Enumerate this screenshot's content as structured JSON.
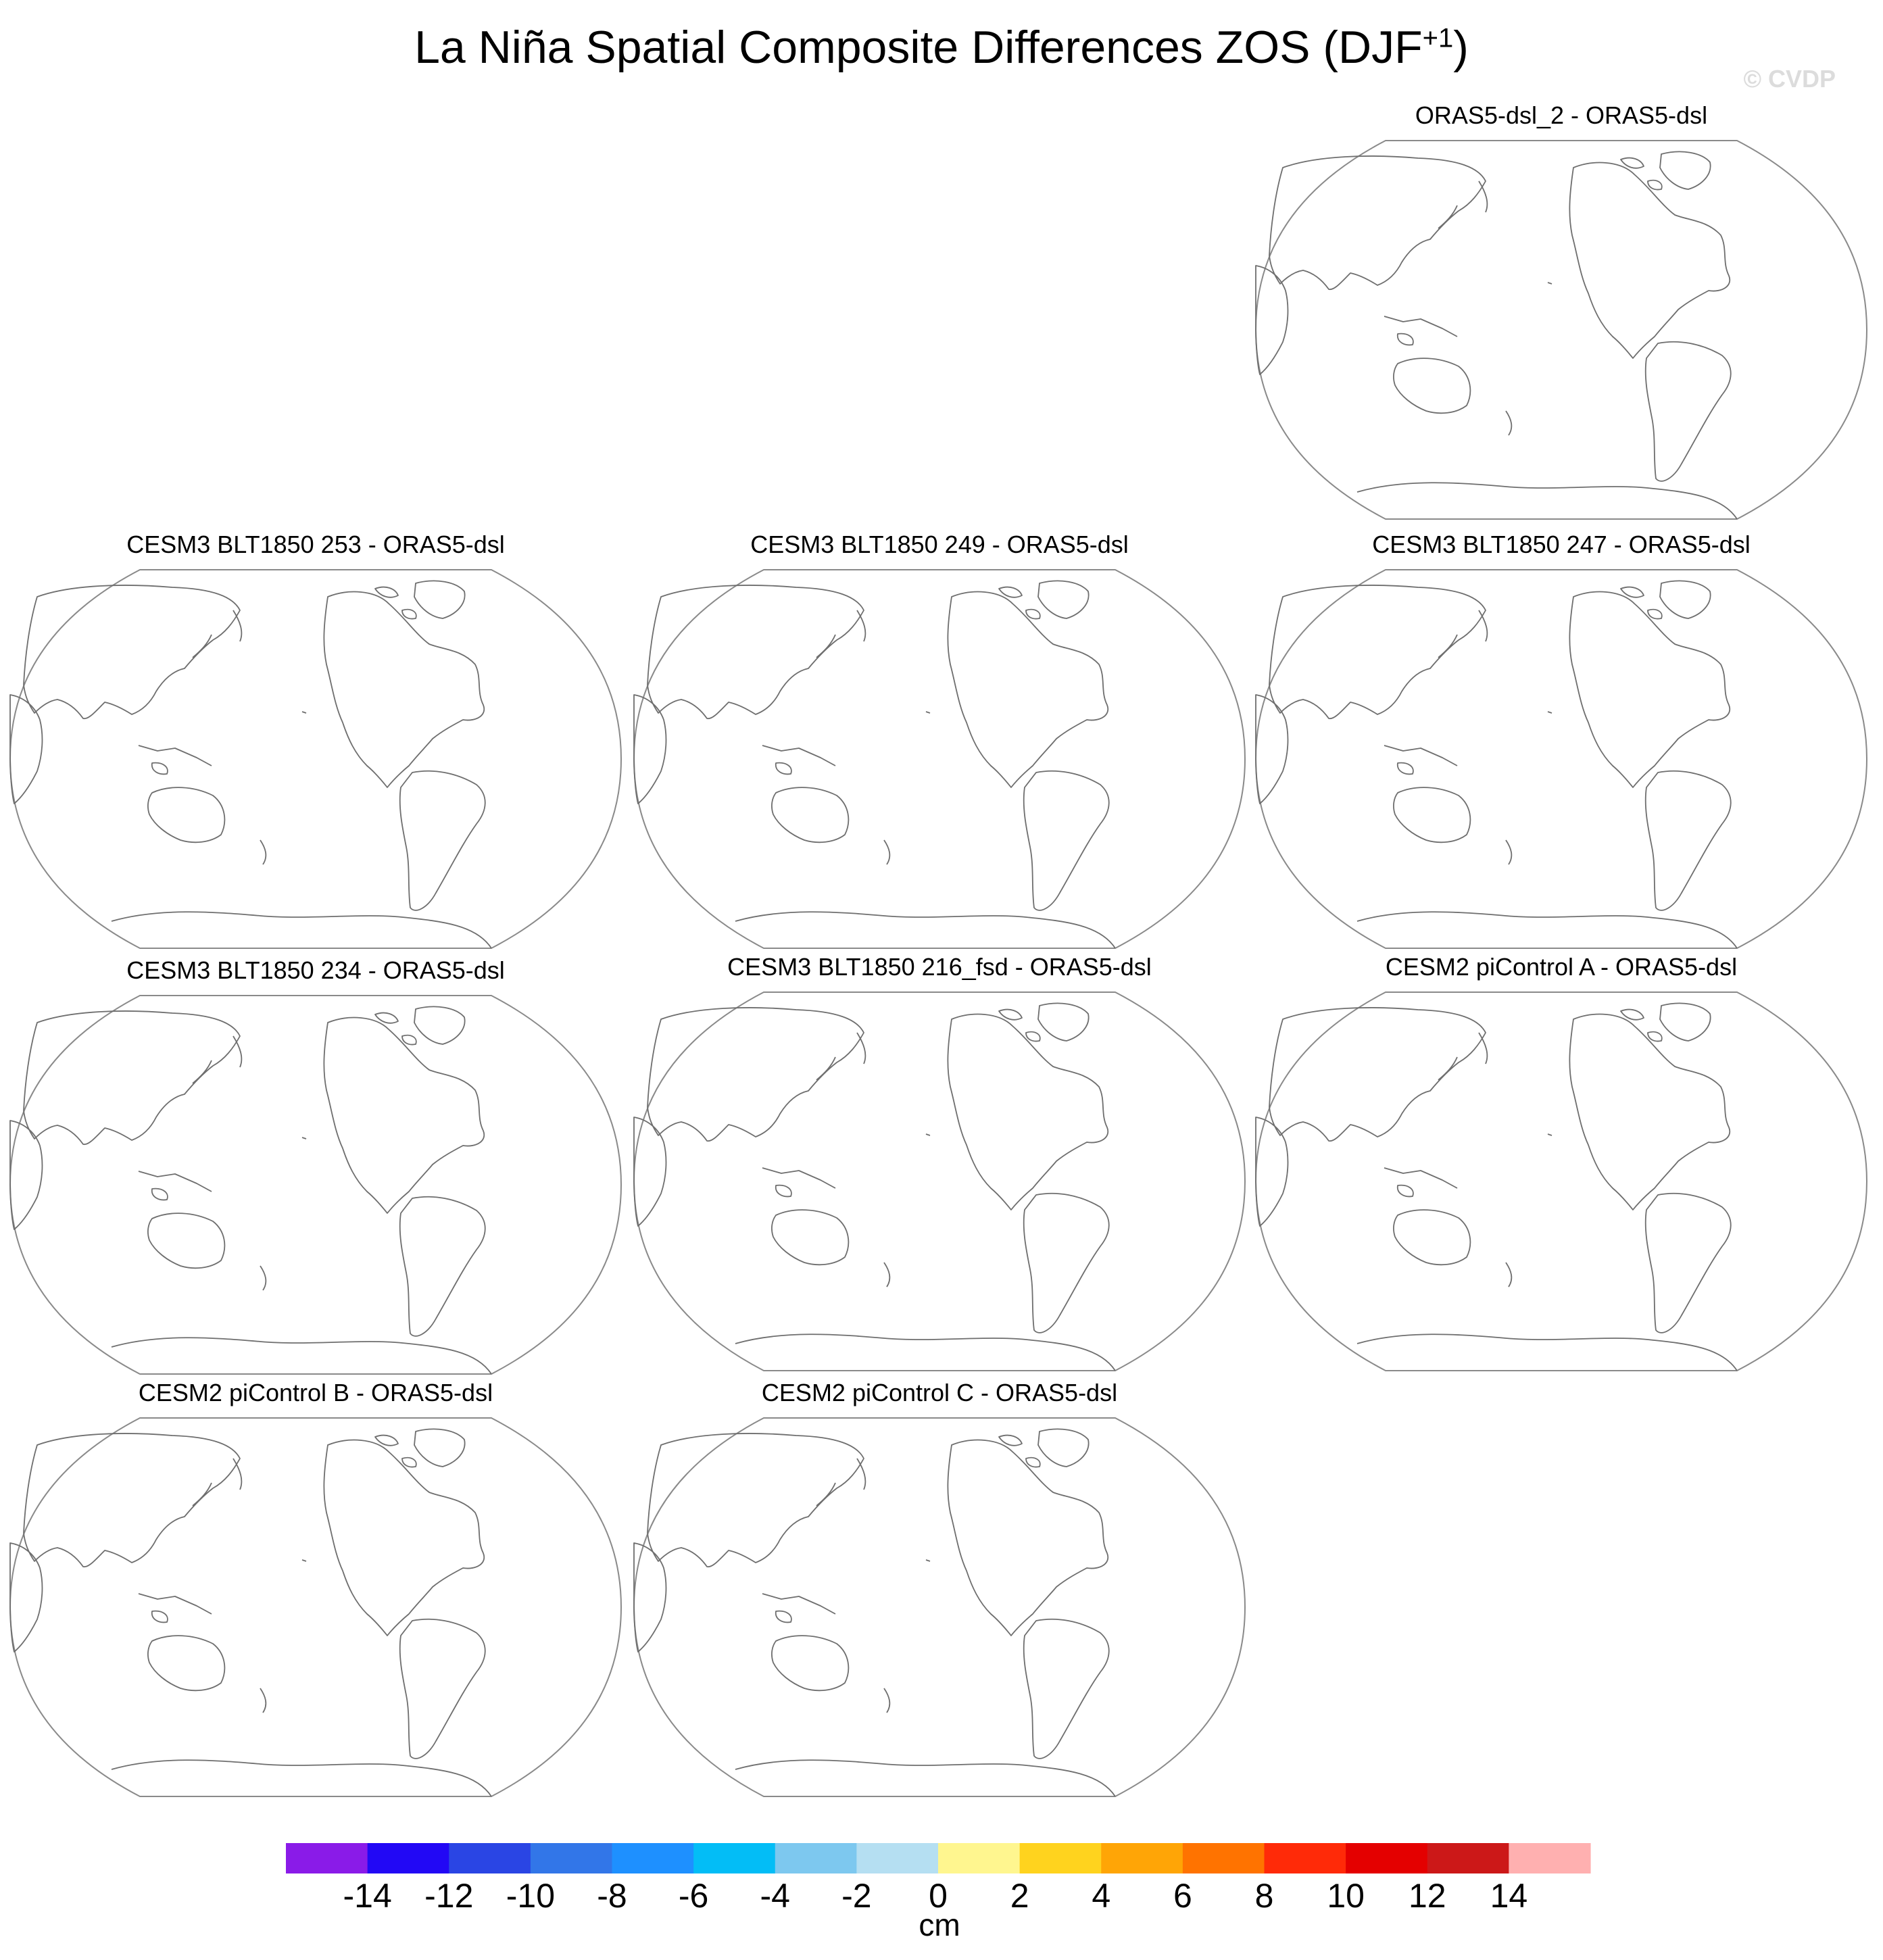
{
  "title": {
    "main": "La Niña Spatial Composite Differences ZOS (DJF",
    "superscript": "+1",
    "close": ")"
  },
  "watermark": "© CVDP",
  "panels": [
    {
      "title": "ORAS5-dsl_2 - ORAS5-dsl"
    },
    {
      "title": "CESM3 BLT1850 253 - ORAS5-dsl"
    },
    {
      "title": "CESM3 BLT1850 249 - ORAS5-dsl"
    },
    {
      "title": "CESM3 BLT1850 247 - ORAS5-dsl"
    },
    {
      "title": "CESM3 BLT1850 234 - ORAS5-dsl"
    },
    {
      "title": "CESM3 BLT1850 216_fsd - ORAS5-dsl"
    },
    {
      "title": "CESM2 piControl A - ORAS5-dsl"
    },
    {
      "title": "CESM2 piControl B - ORAS5-dsl"
    },
    {
      "title": "CESM2 piControl C - ORAS5-dsl"
    }
  ],
  "colorbar": {
    "colors": [
      "#8a1be8",
      "#2208f5",
      "#2a45e4",
      "#3276e8",
      "#1e90ff",
      "#03bdf6",
      "#7dc8ef",
      "#b5dff2",
      "#fff68f",
      "#ffd31e",
      "#ffa506",
      "#ff7300",
      "#ff2a08",
      "#e40000",
      "#cc1818",
      "#ffb0b0"
    ],
    "labels": [
      "-14",
      "-12",
      "-10",
      "-8",
      "-6",
      "-4",
      "-2",
      "0",
      "2",
      "4",
      "6",
      "8",
      "10",
      "12",
      "14"
    ],
    "units": "cm"
  }
}
